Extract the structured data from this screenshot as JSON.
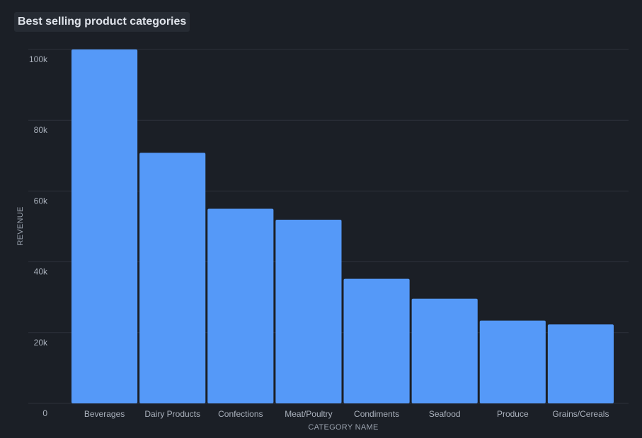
{
  "panel": {
    "title": "Best selling product categories"
  },
  "chart_data": {
    "type": "bar",
    "title": "Best selling product categories",
    "xlabel": "CATEGORY NAME",
    "ylabel": "REVENUE",
    "categories": [
      "Beverages",
      "Dairy Products",
      "Confections",
      "Meat/Poultry",
      "Condiments",
      "Seafood",
      "Produce",
      "Grains/Cereals"
    ],
    "values": [
      100000,
      70800,
      55000,
      51900,
      35200,
      29600,
      23400,
      22300
    ],
    "ylim": [
      0,
      100000
    ],
    "yticks": [
      0,
      20000,
      40000,
      60000,
      80000,
      100000
    ],
    "ytick_labels": [
      "0",
      "20k",
      "40k",
      "60k",
      "80k",
      "100k"
    ],
    "grid": true,
    "colors": {
      "bar": "#5599f8",
      "background": "#1b1f26",
      "grid": "#2c313a"
    }
  }
}
